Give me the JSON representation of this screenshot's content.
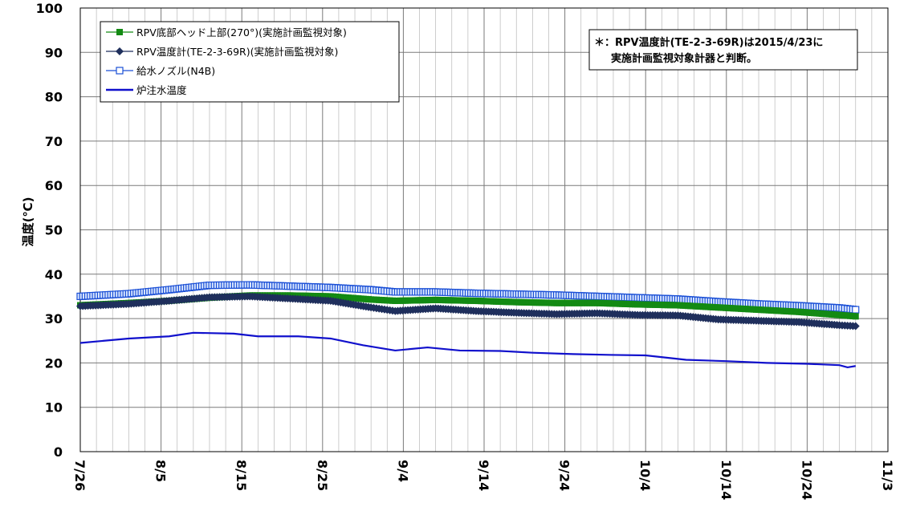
{
  "chart_data": {
    "type": "line",
    "title": "",
    "ylabel": "温度(℃)",
    "xlabel": "",
    "ylim": [
      0,
      100
    ],
    "yticks": [
      0,
      10,
      20,
      30,
      40,
      50,
      60,
      70,
      80,
      90,
      100
    ],
    "x_range": [
      "7/26",
      "11/3"
    ],
    "xtick_labels": [
      "7/26",
      "8/5",
      "8/15",
      "8/25",
      "9/4",
      "9/14",
      "9/24",
      "10/4",
      "10/14",
      "10/24",
      "11/3"
    ],
    "grid": true,
    "legend_position": "top-left",
    "note": "＊：RPV温度計(TE-2-3-69R)は2015/4/23に\n実施計画監視対象計器と判断。",
    "series": [
      {
        "name": "RPV底部ヘッド上部(270°)(実施計画監視対象)",
        "color": "#138a13",
        "marker": "square-filled",
        "points": [
          [
            "7/26",
            33.0
          ],
          [
            "8/1",
            33.5
          ],
          [
            "8/6",
            34.0
          ],
          [
            "8/11",
            34.7
          ],
          [
            "8/16",
            35.2
          ],
          [
            "8/21",
            35.2
          ],
          [
            "8/26",
            35.0
          ],
          [
            "8/31",
            34.3
          ],
          [
            "9/3",
            34.0
          ],
          [
            "9/8",
            34.2
          ],
          [
            "9/13",
            34.0
          ],
          [
            "9/18",
            33.7
          ],
          [
            "9/23",
            33.5
          ],
          [
            "9/28",
            33.5
          ],
          [
            "10/3",
            33.2
          ],
          [
            "10/8",
            33.0
          ],
          [
            "10/13",
            32.5
          ],
          [
            "10/18",
            32.0
          ],
          [
            "10/23",
            31.5
          ],
          [
            "10/28",
            30.8
          ],
          [
            "10/30",
            30.5
          ]
        ]
      },
      {
        "name": "RPV温度計(TE-2-3-69R)(実施計画監視対象)",
        "color": "#1f2f5c",
        "marker": "diamond-filled",
        "points": [
          [
            "7/26",
            32.8
          ],
          [
            "8/1",
            33.3
          ],
          [
            "8/6",
            34.0
          ],
          [
            "8/11",
            34.8
          ],
          [
            "8/16",
            35.0
          ],
          [
            "8/21",
            34.5
          ],
          [
            "8/26",
            34.0
          ],
          [
            "8/31",
            32.5
          ],
          [
            "9/3",
            31.7
          ],
          [
            "9/8",
            32.3
          ],
          [
            "9/13",
            31.7
          ],
          [
            "9/18",
            31.3
          ],
          [
            "9/23",
            31.0
          ],
          [
            "9/28",
            31.2
          ],
          [
            "10/3",
            30.8
          ],
          [
            "10/8",
            30.7
          ],
          [
            "10/13",
            29.8
          ],
          [
            "10/18",
            29.5
          ],
          [
            "10/23",
            29.2
          ],
          [
            "10/28",
            28.5
          ],
          [
            "10/30",
            28.3
          ]
        ]
      },
      {
        "name": "給水ノズル(N4B)",
        "color": "#1a4fd6",
        "marker": "square-open",
        "points": [
          [
            "7/26",
            35.0
          ],
          [
            "8/1",
            35.6
          ],
          [
            "8/6",
            36.5
          ],
          [
            "8/11",
            37.5
          ],
          [
            "8/16",
            37.6
          ],
          [
            "8/21",
            37.3
          ],
          [
            "8/26",
            37.0
          ],
          [
            "8/31",
            36.5
          ],
          [
            "9/3",
            36.0
          ],
          [
            "9/8",
            36.0
          ],
          [
            "9/13",
            35.7
          ],
          [
            "9/18",
            35.5
          ],
          [
            "9/23",
            35.3
          ],
          [
            "9/28",
            35.0
          ],
          [
            "10/3",
            34.7
          ],
          [
            "10/8",
            34.4
          ],
          [
            "10/13",
            33.8
          ],
          [
            "10/18",
            33.3
          ],
          [
            "10/23",
            32.9
          ],
          [
            "10/28",
            32.4
          ],
          [
            "10/30",
            32.0
          ]
        ]
      },
      {
        "name": "炉注水温度",
        "color": "#1010cc",
        "marker": "none",
        "points": [
          [
            "7/26",
            24.5
          ],
          [
            "8/1",
            25.5
          ],
          [
            "8/6",
            26.0
          ],
          [
            "8/9",
            26.8
          ],
          [
            "8/14",
            26.6
          ],
          [
            "8/17",
            26.0
          ],
          [
            "8/22",
            26.0
          ],
          [
            "8/26",
            25.5
          ],
          [
            "8/30",
            24.0
          ],
          [
            "9/3",
            22.8
          ],
          [
            "9/7",
            23.5
          ],
          [
            "9/11",
            22.8
          ],
          [
            "9/16",
            22.7
          ],
          [
            "9/20",
            22.3
          ],
          [
            "9/25",
            22.0
          ],
          [
            "9/30",
            21.8
          ],
          [
            "10/4",
            21.7
          ],
          [
            "10/9",
            20.7
          ],
          [
            "10/14",
            20.4
          ],
          [
            "10/19",
            20.0
          ],
          [
            "10/24",
            19.8
          ],
          [
            "10/28",
            19.5
          ],
          [
            "10/29",
            19.0
          ],
          [
            "10/30",
            19.3
          ]
        ]
      }
    ]
  }
}
